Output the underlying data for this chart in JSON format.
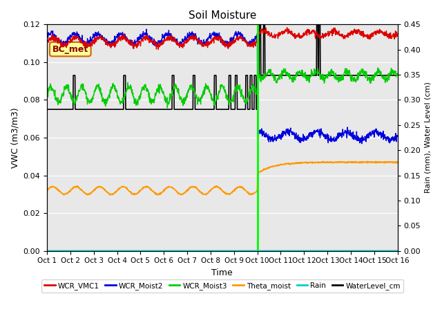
{
  "title": "Soil Moisture",
  "xlabel": "Time",
  "ylabel_left": "VWC (m3/m3)",
  "ylabel_right": "Rain (mm), Water Level (cm)",
  "ylim_left": [
    0.0,
    0.12
  ],
  "ylim_right": [
    0.0,
    0.45
  ],
  "bg_color": "#e8e8e8",
  "annotation_label": "BC_met",
  "colors": {
    "WCR_VMC1": "#dd0000",
    "WCR_Moist2": "#0000dd",
    "WCR_Moist3": "#00cc00",
    "Theta_moist": "#ff9900",
    "Rain": "#00cccc",
    "WaterLevel_cm": "#000000"
  },
  "x_ticks": [
    "Oct 1",
    "Oct 2",
    "Oct 3",
    "Oct 4",
    "Oct 5",
    "Oct 6",
    "Oct 7",
    "Oct 8",
    "Oct 9",
    "Oct 10",
    "Oct 11",
    "Oct 12",
    "Oct 13",
    "Oct 14",
    "Oct 15",
    "Oct 16"
  ],
  "yticks_left": [
    0.0,
    0.02,
    0.04,
    0.06,
    0.08,
    0.1,
    0.12
  ],
  "yticks_right": [
    0.0,
    0.05,
    0.1,
    0.15,
    0.2,
    0.25,
    0.3,
    0.35,
    0.4,
    0.45
  ],
  "split_day": 9.0,
  "n_total": 1440,
  "n_days": 15
}
